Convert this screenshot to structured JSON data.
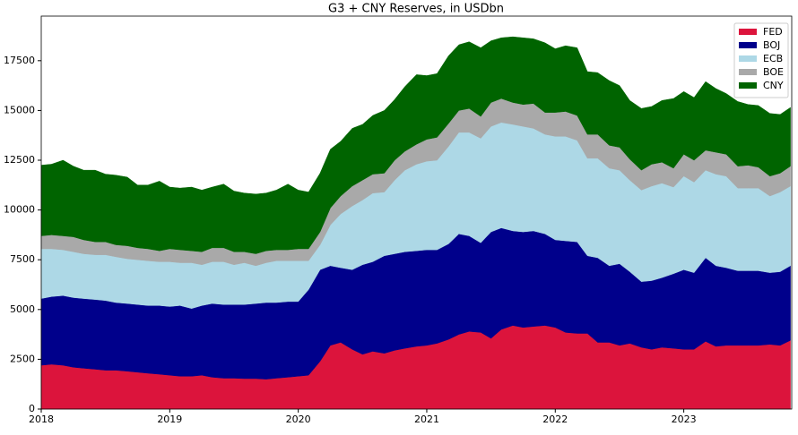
{
  "chart_data": {
    "type": "stacked_area",
    "title": "G3 + CNY Reserves, in USDbn",
    "x": [
      2018,
      2018.08,
      2018.17,
      2018.25,
      2018.33,
      2018.42,
      2018.5,
      2018.58,
      2018.67,
      2018.75,
      2018.83,
      2018.92,
      2019,
      2019.08,
      2019.17,
      2019.25,
      2019.33,
      2019.42,
      2019.5,
      2019.58,
      2019.67,
      2019.75,
      2019.83,
      2019.92,
      2020,
      2020.08,
      2020.17,
      2020.25,
      2020.33,
      2020.42,
      2020.5,
      2020.58,
      2020.67,
      2020.75,
      2020.83,
      2020.92,
      2021,
      2021.08,
      2021.17,
      2021.25,
      2021.33,
      2021.42,
      2021.5,
      2021.58,
      2021.67,
      2021.75,
      2021.83,
      2021.92,
      2022,
      2022.08,
      2022.17,
      2022.25,
      2022.33,
      2022.42,
      2022.5,
      2022.58,
      2022.67,
      2022.75,
      2022.83,
      2022.92,
      2023,
      2023.08,
      2023.17,
      2023.25,
      2023.33,
      2023.42,
      2023.5,
      2023.58,
      2023.67,
      2023.75,
      2023.83
    ],
    "series": [
      {
        "name": "FED",
        "color": "#dc143c",
        "values": [
          2200,
          2250,
          2200,
          2100,
          2050,
          2000,
          1950,
          1950,
          1900,
          1850,
          1800,
          1750,
          1700,
          1650,
          1650,
          1700,
          1600,
          1550,
          1550,
          1530,
          1530,
          1500,
          1550,
          1600,
          1650,
          1700,
          2400,
          3200,
          3350,
          3000,
          2750,
          2900,
          2800,
          2950,
          3050,
          3150,
          3200,
          3300,
          3500,
          3750,
          3900,
          3850,
          3550,
          4000,
          4200,
          4100,
          4150,
          4200,
          4100,
          3850,
          3800,
          3800,
          3350,
          3350,
          3200,
          3300,
          3100,
          3000,
          3100,
          3050,
          3000,
          3000,
          3400,
          3150,
          3200,
          3200,
          3200,
          3200,
          3250,
          3200,
          3450
        ]
      },
      {
        "name": "BOJ",
        "color": "#00008b",
        "values": [
          3350,
          3400,
          3500,
          3500,
          3500,
          3500,
          3500,
          3400,
          3400,
          3400,
          3400,
          3450,
          3450,
          3550,
          3400,
          3500,
          3700,
          3700,
          3700,
          3720,
          3770,
          3850,
          3800,
          3800,
          3750,
          4300,
          4600,
          4000,
          3750,
          4000,
          4500,
          4500,
          4900,
          4850,
          4850,
          4800,
          4800,
          4700,
          4800,
          5050,
          4800,
          4500,
          5350,
          5100,
          4750,
          4800,
          4800,
          4600,
          4400,
          4600,
          4600,
          3900,
          4250,
          3850,
          4100,
          3600,
          3300,
          3450,
          3500,
          3750,
          4000,
          3850,
          4200,
          4050,
          3900,
          3750,
          3750,
          3750,
          3600,
          3700,
          3750
        ]
      },
      {
        "name": "ECB",
        "color": "#add8e6",
        "values": [
          2500,
          2400,
          2300,
          2300,
          2250,
          2250,
          2300,
          2300,
          2250,
          2250,
          2250,
          2200,
          2250,
          2150,
          2300,
          2050,
          2100,
          2150,
          2000,
          2100,
          1900,
          2000,
          2100,
          2050,
          2050,
          1450,
          1250,
          2050,
          2700,
          3200,
          3250,
          3450,
          3200,
          3700,
          4100,
          4350,
          4450,
          4500,
          4900,
          5100,
          5200,
          5250,
          5300,
          5300,
          5350,
          5300,
          5150,
          5000,
          5200,
          5250,
          5100,
          4900,
          5000,
          4900,
          4700,
          4600,
          4600,
          4750,
          4750,
          4350,
          4700,
          4550,
          4400,
          4600,
          4600,
          4150,
          4150,
          4150,
          3850,
          4000,
          4000
        ]
      },
      {
        "name": "BOE",
        "color": "#a9a9a9",
        "values": [
          650,
          700,
          700,
          750,
          700,
          650,
          650,
          600,
          650,
          600,
          600,
          550,
          650,
          650,
          600,
          650,
          700,
          700,
          650,
          550,
          600,
          600,
          550,
          550,
          600,
          600,
          650,
          850,
          900,
          1000,
          1000,
          950,
          950,
          1000,
          950,
          1000,
          1100,
          1150,
          1150,
          1100,
          1200,
          1100,
          1200,
          1200,
          1100,
          1100,
          1250,
          1100,
          1200,
          1250,
          1250,
          1200,
          1200,
          1150,
          1150,
          1050,
          1000,
          1100,
          1050,
          950,
          1100,
          1100,
          1000,
          1100,
          1100,
          1100,
          1150,
          1050,
          1000,
          950,
          1000
        ]
      },
      {
        "name": "CNY",
        "color": "#006400",
        "values": [
          3550,
          3550,
          3800,
          3550,
          3500,
          3600,
          3400,
          3500,
          3450,
          3150,
          3200,
          3500,
          3100,
          3100,
          3200,
          3100,
          3050,
          3200,
          3050,
          2950,
          3000,
          2900,
          3000,
          3300,
          2950,
          2850,
          2950,
          2950,
          2750,
          2900,
          2800,
          2950,
          3150,
          3050,
          3250,
          3500,
          3200,
          3200,
          3400,
          3300,
          3350,
          3450,
          3100,
          3050,
          3300,
          3350,
          3250,
          3500,
          3200,
          3300,
          3400,
          3150,
          3100,
          3250,
          3100,
          2950,
          3100,
          2900,
          3100,
          3500,
          3150,
          3150,
          3450,
          3200,
          3050,
          3250,
          3050,
          3100,
          3150,
          2950,
          2950
        ]
      }
    ],
    "xlim": [
      2018,
      2023.84
    ],
    "xticks": [
      2018,
      2019,
      2020,
      2021,
      2022,
      2023
    ],
    "ylim": [
      0,
      19740
    ],
    "yticks": [
      0,
      2500,
      5000,
      7500,
      10000,
      12500,
      15000,
      17500
    ],
    "legend": "upper right"
  }
}
